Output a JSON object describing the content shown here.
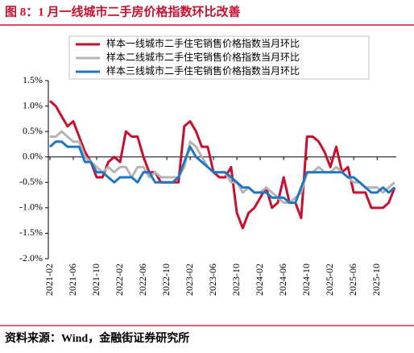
{
  "chart_data": {
    "type": "line",
    "title": "图 8：1 月一线城市二手房价格指数环比改善",
    "source": "资料来源：Wind，金融街证券研究所",
    "categories": [
      "2021-02",
      null,
      null,
      null,
      "2021-06",
      null,
      null,
      null,
      "2021-10",
      null,
      null,
      null,
      "2022-02",
      null,
      null,
      null,
      "2022-06",
      null,
      null,
      null,
      "2022-10",
      null,
      null,
      null,
      "2023-02",
      null,
      null,
      null,
      "2023-06",
      null,
      null,
      null,
      "2023-10",
      null,
      null,
      null,
      "2024-02",
      null,
      null,
      null,
      "2024-06",
      null,
      null,
      null,
      "2024-10",
      null,
      null,
      null,
      "2025-02",
      null,
      null,
      null,
      "2025-06",
      null,
      null,
      null,
      "2025-10",
      null,
      null,
      null
    ],
    "series": [
      {
        "name": "样本一线城市二手住宅销售价格指数当月环比",
        "color": "#c8102e",
        "values": [
          1.1,
          1.0,
          0.8,
          0.6,
          0.7,
          0.4,
          0.1,
          -0.1,
          -0.4,
          -0.4,
          -0.1,
          0.0,
          -0.1,
          0.5,
          0.4,
          0.4,
          0.0,
          -0.3,
          -0.3,
          -0.5,
          -0.5,
          -0.5,
          -0.5,
          0.6,
          0.7,
          0.5,
          0.2,
          0.2,
          -0.3,
          -0.4,
          -0.4,
          -0.2,
          -1.1,
          -1.4,
          -1.1,
          -1.0,
          -0.8,
          -0.6,
          -1.0,
          -0.9,
          -0.4,
          -0.9,
          -0.9,
          -1.2,
          0.4,
          0.4,
          0.3,
          0.1,
          -0.2,
          0.2,
          -0.3,
          -0.2,
          -0.7,
          -0.7,
          -0.7,
          -1.0,
          -1.0,
          -1.0,
          -0.9,
          -0.6
        ]
      },
      {
        "name": "样本二线城市二手住宅销售价格指数当月环比",
        "color": "#b4b4b4",
        "values": [
          0.4,
          0.4,
          0.5,
          0.4,
          0.3,
          0.3,
          0.0,
          -0.1,
          -0.2,
          -0.3,
          -0.2,
          -0.3,
          -0.2,
          -0.2,
          -0.4,
          -0.2,
          -0.2,
          -0.4,
          -0.3,
          -0.4,
          -0.4,
          -0.4,
          -0.4,
          -0.2,
          0.3,
          0.2,
          0.0,
          -0.2,
          -0.3,
          -0.3,
          -0.3,
          -0.5,
          -0.5,
          -0.7,
          -0.6,
          -0.7,
          -0.7,
          -0.6,
          -0.7,
          -0.8,
          -0.9,
          -0.9,
          -0.8,
          -0.7,
          -0.3,
          -0.3,
          -0.2,
          -0.3,
          -0.3,
          -0.2,
          -0.3,
          -0.4,
          -0.5,
          -0.5,
          -0.6,
          -0.6,
          -0.6,
          -0.7,
          -0.6,
          -0.5
        ]
      },
      {
        "name": "样本三线城市二手住宅销售价格指数当月环比",
        "color": "#1f77c4",
        "values": [
          0.2,
          0.3,
          0.3,
          0.2,
          0.2,
          0.2,
          -0.1,
          -0.1,
          -0.3,
          -0.3,
          -0.4,
          -0.5,
          -0.4,
          -0.4,
          -0.4,
          -0.5,
          -0.3,
          -0.3,
          -0.5,
          -0.5,
          -0.5,
          -0.5,
          -0.4,
          -0.1,
          0.2,
          0.0,
          -0.1,
          -0.2,
          -0.3,
          -0.3,
          -0.3,
          -0.4,
          -0.5,
          -0.6,
          -0.6,
          -0.7,
          -0.7,
          -0.7,
          -0.8,
          -0.8,
          -0.8,
          -0.9,
          -0.9,
          -0.6,
          -0.3,
          -0.3,
          -0.3,
          -0.3,
          -0.3,
          -0.3,
          -0.3,
          -0.4,
          -0.4,
          -0.5,
          -0.6,
          -0.7,
          -0.7,
          -0.6,
          -0.7,
          -0.6
        ]
      }
    ],
    "ylim": [
      -2.0,
      1.5
    ],
    "yticks": [
      {
        "value": -2.0,
        "label": "-2.0%"
      },
      {
        "value": -1.5,
        "label": "-1.5%"
      },
      {
        "value": -1.0,
        "label": "-1.0%"
      },
      {
        "value": -0.5,
        "label": "-0.5%"
      },
      {
        "value": 0,
        "label": "0.0%"
      },
      {
        "value": 0.5,
        "label": "0.5%"
      },
      {
        "value": 1.0,
        "label": "1.0%"
      },
      {
        "value": 1.5,
        "label": "1.5%"
      }
    ],
    "grid": false
  }
}
